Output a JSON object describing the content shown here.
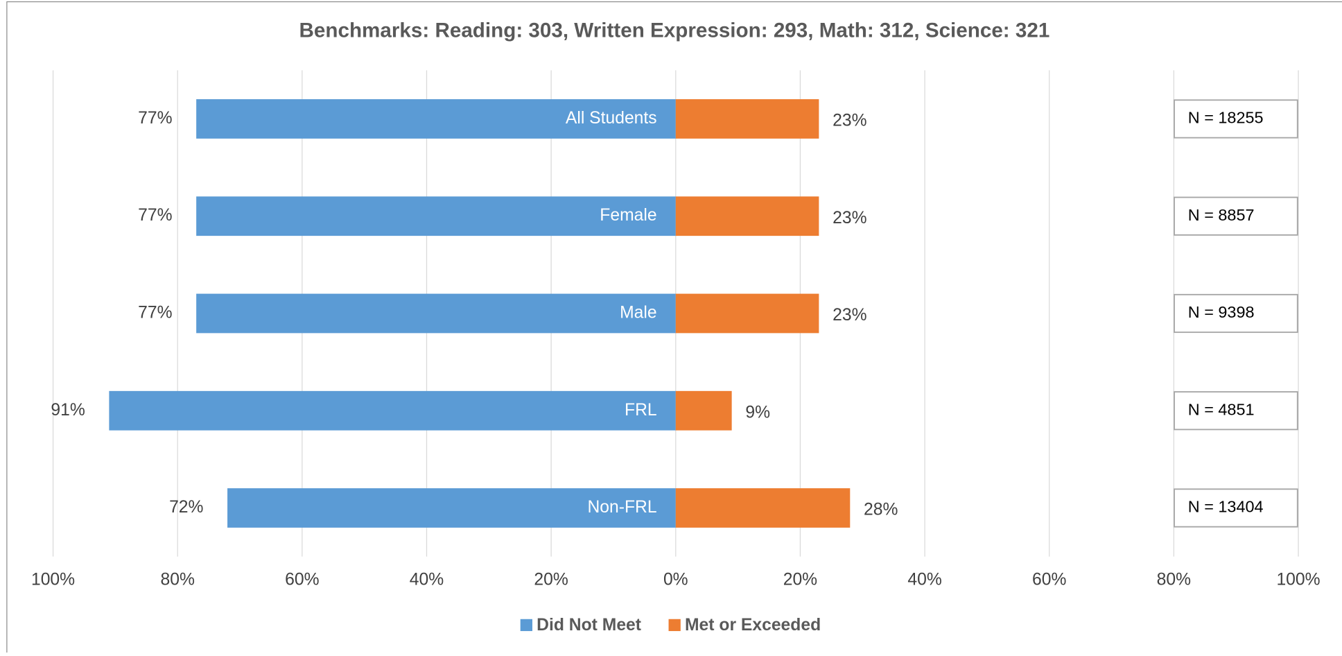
{
  "chart_data": {
    "type": "diverging_bar",
    "title": "Benchmarks: Reading: 303, Written Expression: 293, Math: 312, Science: 321",
    "categories": [
      "All Students",
      "Female",
      "Male",
      "FRL",
      "Non-FRL"
    ],
    "series": [
      {
        "name": "Did Not Meet",
        "color": "#5b9bd5",
        "side": "left",
        "values": [
          77,
          77,
          77,
          91,
          72
        ],
        "value_labels": [
          "77%",
          "77%",
          "77%",
          "91%",
          "72%"
        ]
      },
      {
        "name": "Met or Exceeded",
        "color": "#ed7d31",
        "side": "right",
        "values": [
          23,
          23,
          23,
          9,
          28
        ],
        "value_labels": [
          "23%",
          "23%",
          "23%",
          "9%",
          "28%"
        ]
      }
    ],
    "annotations": [
      "N = 18255",
      "N = 8857",
      "N = 9398",
      "N = 4851",
      "N = 13404"
    ],
    "xlim": [
      -100,
      100
    ],
    "xticks": [
      {
        "value": -100,
        "label": "100%"
      },
      {
        "value": -80,
        "label": "80%"
      },
      {
        "value": -60,
        "label": "60%"
      },
      {
        "value": -40,
        "label": "40%"
      },
      {
        "value": -20,
        "label": "20%"
      },
      {
        "value": 0,
        "label": "0%"
      },
      {
        "value": 20,
        "label": "20%"
      },
      {
        "value": 40,
        "label": "40%"
      },
      {
        "value": 60,
        "label": "60%"
      },
      {
        "value": 80,
        "label": "80%"
      },
      {
        "value": 100,
        "label": "100%"
      }
    ],
    "grid": true,
    "legend": "bottom"
  }
}
